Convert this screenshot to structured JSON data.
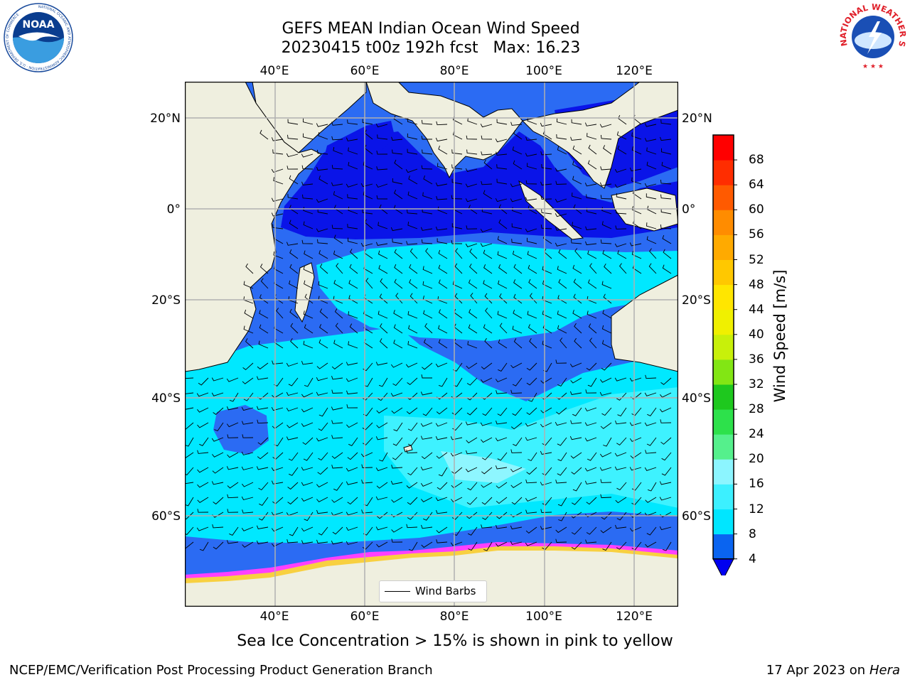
{
  "title_line1": "GEFS MEAN Indian Ocean Wind Speed",
  "title_line2": "20230415 t00z 192h fcst   Max: 16.23",
  "lat_labels": [
    "20°N",
    "0°",
    "20°S",
    "40°S",
    "60°S"
  ],
  "lon_labels": [
    "40°E",
    "60°E",
    "80°E",
    "100°E",
    "120°E"
  ],
  "legend_label": "Wind Barbs",
  "colorbar": {
    "label": "Wind Speed [m/s]",
    "ticks": [
      "4",
      "8",
      "12",
      "16",
      "20",
      "24",
      "28",
      "32",
      "36",
      "40",
      "44",
      "48",
      "52",
      "56",
      "60",
      "64",
      "68"
    ],
    "colors": [
      "#0a64f0",
      "#00e6ff",
      "#3cf0ff",
      "#8cf5ff",
      "#55f08c",
      "#2de14b",
      "#1ec81e",
      "#82e614",
      "#c8f00a",
      "#f0f000",
      "#ffe600",
      "#ffc800",
      "#ffaa00",
      "#ff8c00",
      "#ff5a00",
      "#ff2d00",
      "#ff0000"
    ],
    "extend_color": "#0000f0"
  },
  "map_colors": {
    "land": "#efefdf",
    "speed_4_8": "#2b6bf3",
    "speed_low": "#0a14e8",
    "speed_8_12": "#00e8ff",
    "speed_12_16": "#3ef2ff",
    "speed_16_20": "#8ef6ff",
    "ice_pink": "#ff40ff",
    "ice_yellow": "#f8d040",
    "grid": "#b0b0b0"
  },
  "footnote": "Sea Ice Concentration > 15% is shown in pink to yellow",
  "footer_left": "NCEP/EMC/Verification Post Processing Product Generation Branch",
  "footer_right_date": "17 Apr 2023 on ",
  "footer_right_host": "Hera",
  "logo_left_text": "NOAA",
  "logo_left_ring": "NATIONAL OCEANIC AND ATMOSPHERIC ADMINISTRATION · U.S. DEPARTMENT OF COMMERCE",
  "logo_right_ring": "NATIONAL WEATHER SERVICE"
}
